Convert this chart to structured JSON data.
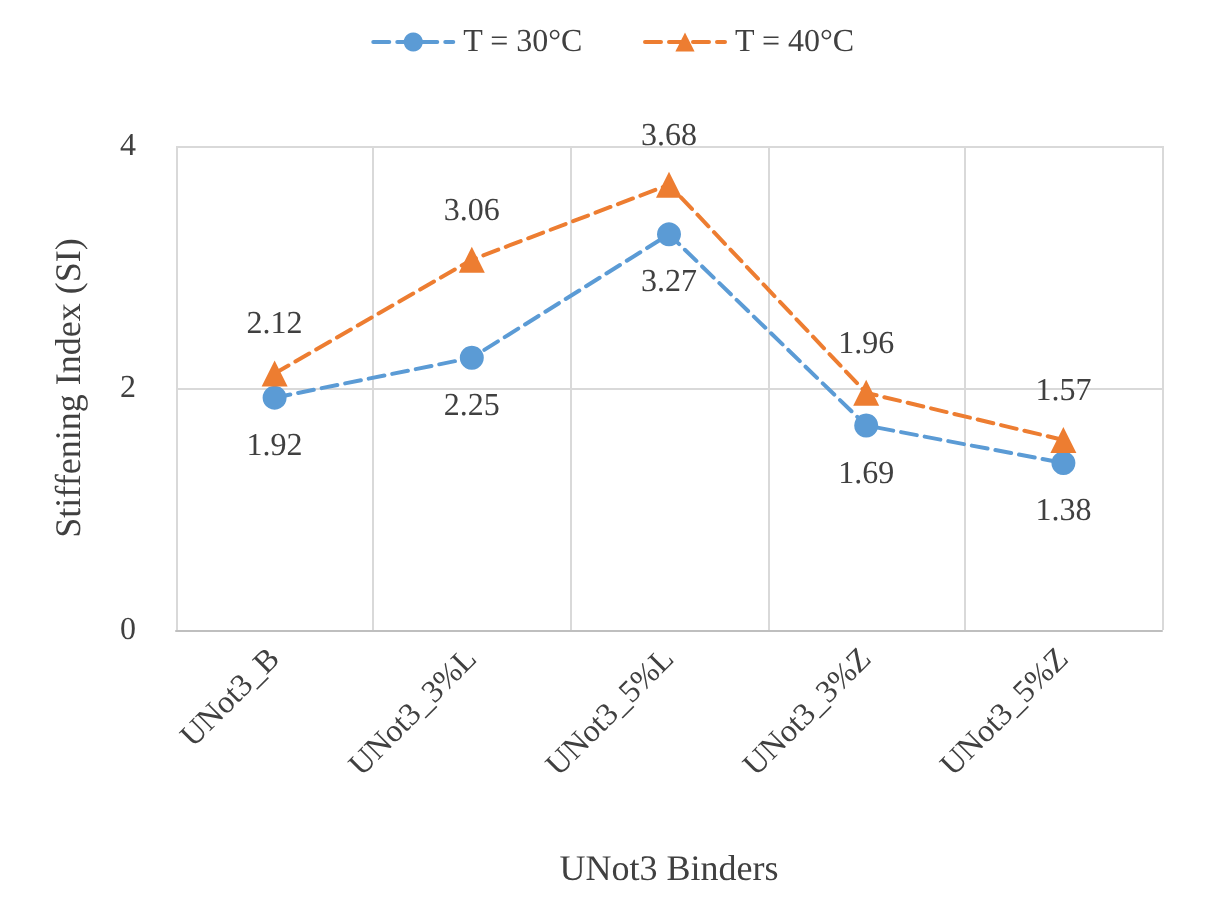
{
  "chart_data": {
    "type": "line",
    "xlabel": "UNot3 Binders",
    "ylabel": "Stiffening Index (SI)",
    "categories": [
      "UNot3_B",
      "UNot3_3%L",
      "UNot3_5%L",
      "UNot3_3%Z",
      "UNot3_5%Z"
    ],
    "series": [
      {
        "name": "T = 30°C",
        "color": "#5b9bd5",
        "marker": "circle",
        "values": [
          1.92,
          2.25,
          3.27,
          1.69,
          1.38
        ]
      },
      {
        "name": "T = 40°C",
        "color": "#ed7d31",
        "marker": "triangle",
        "values": [
          2.12,
          3.06,
          3.68,
          1.96,
          1.57
        ]
      }
    ],
    "ylim": [
      0,
      4
    ],
    "yticks": [
      0,
      2,
      4
    ],
    "grid": true,
    "legend": "top",
    "line_style": "dashed",
    "data_labels": true
  }
}
